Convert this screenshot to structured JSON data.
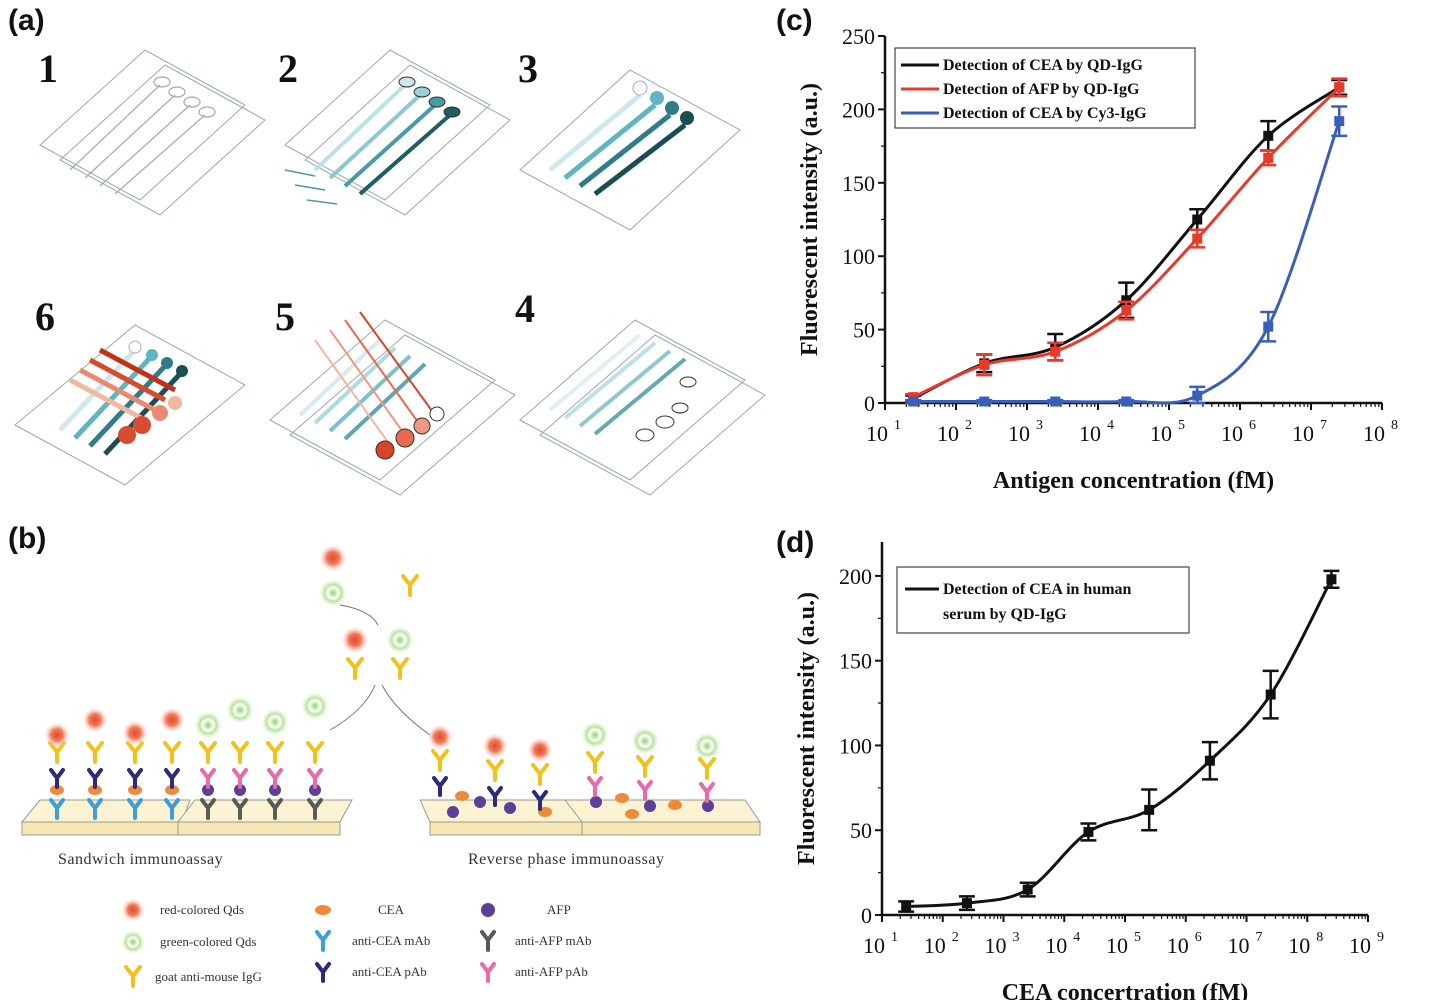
{
  "panels": {
    "a": "(a)",
    "b": "(b)",
    "c": "(c)",
    "d": "(d)"
  },
  "panel_a": {
    "steps": [
      "1",
      "2",
      "3",
      "6",
      "5",
      "4"
    ]
  },
  "panel_b": {
    "captions": {
      "sandwich": "Sandwich immunoassay",
      "reverse": "Reverse phase immunoassay"
    },
    "legend": {
      "red_qds": "red-colored Qds",
      "green_qds": "green-colored Qds",
      "goat_igg": "goat anti-mouse IgG",
      "cea": "CEA",
      "anti_cea_mab": "anti-CEA mAb",
      "anti_cea_pab": "anti-CEA pAb",
      "afp": "AFP",
      "anti_afp_mab": "anti-AFP mAb",
      "anti_afp_pab": "anti-AFP pAb"
    }
  },
  "chart_data": [
    {
      "id": "c",
      "type": "scatter",
      "xlabel": "Antigen concentration (fM)",
      "ylabel": "Fluorescent intensity (a.u.)",
      "xscale": "log",
      "xlim_exp": [
        1,
        8
      ],
      "ylim": [
        0,
        250
      ],
      "xtick_exps": [
        1,
        2,
        3,
        4,
        5,
        6,
        7,
        8
      ],
      "ytick_values": [
        0,
        50,
        100,
        150,
        200,
        250
      ],
      "xtick_labels": [
        "10",
        "10",
        "10",
        "10",
        "10",
        "10",
        "10",
        "10"
      ],
      "xtick_sups": [
        "1",
        "2",
        "3",
        "4",
        "5",
        "6",
        "7",
        "8"
      ],
      "ytick_labels": [
        "0",
        "50",
        "100",
        "150",
        "200",
        "250"
      ],
      "legend_position": "top-left",
      "series": [
        {
          "name": "Detection of CEA by QD-IgG",
          "color": "#111111",
          "x": [
            25,
            250,
            2500,
            25000,
            250000,
            2500000,
            25000000
          ],
          "y": [
            3,
            27,
            38,
            70,
            125,
            182,
            215
          ],
          "err": [
            2,
            6,
            9,
            12,
            7,
            10,
            5
          ]
        },
        {
          "name": "Detection of AFP by QD-IgG",
          "color": "#e8392a",
          "x": [
            25,
            250,
            2500,
            25000,
            250000,
            2500000,
            25000000
          ],
          "y": [
            4,
            26,
            35,
            63,
            112,
            167,
            215
          ],
          "err": [
            2,
            7,
            6,
            6,
            6,
            5,
            6
          ]
        },
        {
          "name": "Detection of CEA by Cy3-IgG",
          "color": "#3a5fb8",
          "x": [
            25,
            250,
            2500,
            25000,
            250000,
            2500000,
            25000000
          ],
          "y": [
            1,
            1,
            1,
            1,
            5,
            52,
            192
          ],
          "err": [
            1,
            1,
            1,
            1,
            6,
            10,
            10
          ]
        }
      ]
    },
    {
      "id": "d",
      "type": "scatter",
      "xlabel": "CEA concertration (fM)",
      "ylabel": "Fluorescent intensity (a.u.)",
      "xscale": "log",
      "xlim_exp": [
        1,
        9
      ],
      "ylim": [
        0,
        220
      ],
      "xtick_exps": [
        1,
        2,
        3,
        4,
        5,
        6,
        7,
        8,
        9
      ],
      "ytick_values": [
        0,
        50,
        100,
        150,
        200
      ],
      "xtick_labels": [
        "10",
        "10",
        "10",
        "10",
        "10",
        "10",
        "10",
        "10",
        "10"
      ],
      "xtick_sups": [
        "1",
        "2",
        "3",
        "4",
        "5",
        "6",
        "7",
        "8",
        "9"
      ],
      "ytick_labels": [
        "0",
        "50",
        "100",
        "150",
        "200"
      ],
      "legend_position": "top-left",
      "legend_line1": "Detection of CEA in human",
      "legend_line2": "serum by QD-IgG",
      "series": [
        {
          "name": "Detection of CEA in human serum by QD-IgG",
          "color": "#111111",
          "x": [
            25,
            250,
            2500,
            25000,
            250000,
            2500000,
            25000000,
            250000000
          ],
          "y": [
            5,
            7,
            15,
            49,
            62,
            91,
            130,
            198
          ],
          "err": [
            3,
            4,
            4,
            5,
            12,
            11,
            14,
            5
          ]
        }
      ]
    }
  ]
}
